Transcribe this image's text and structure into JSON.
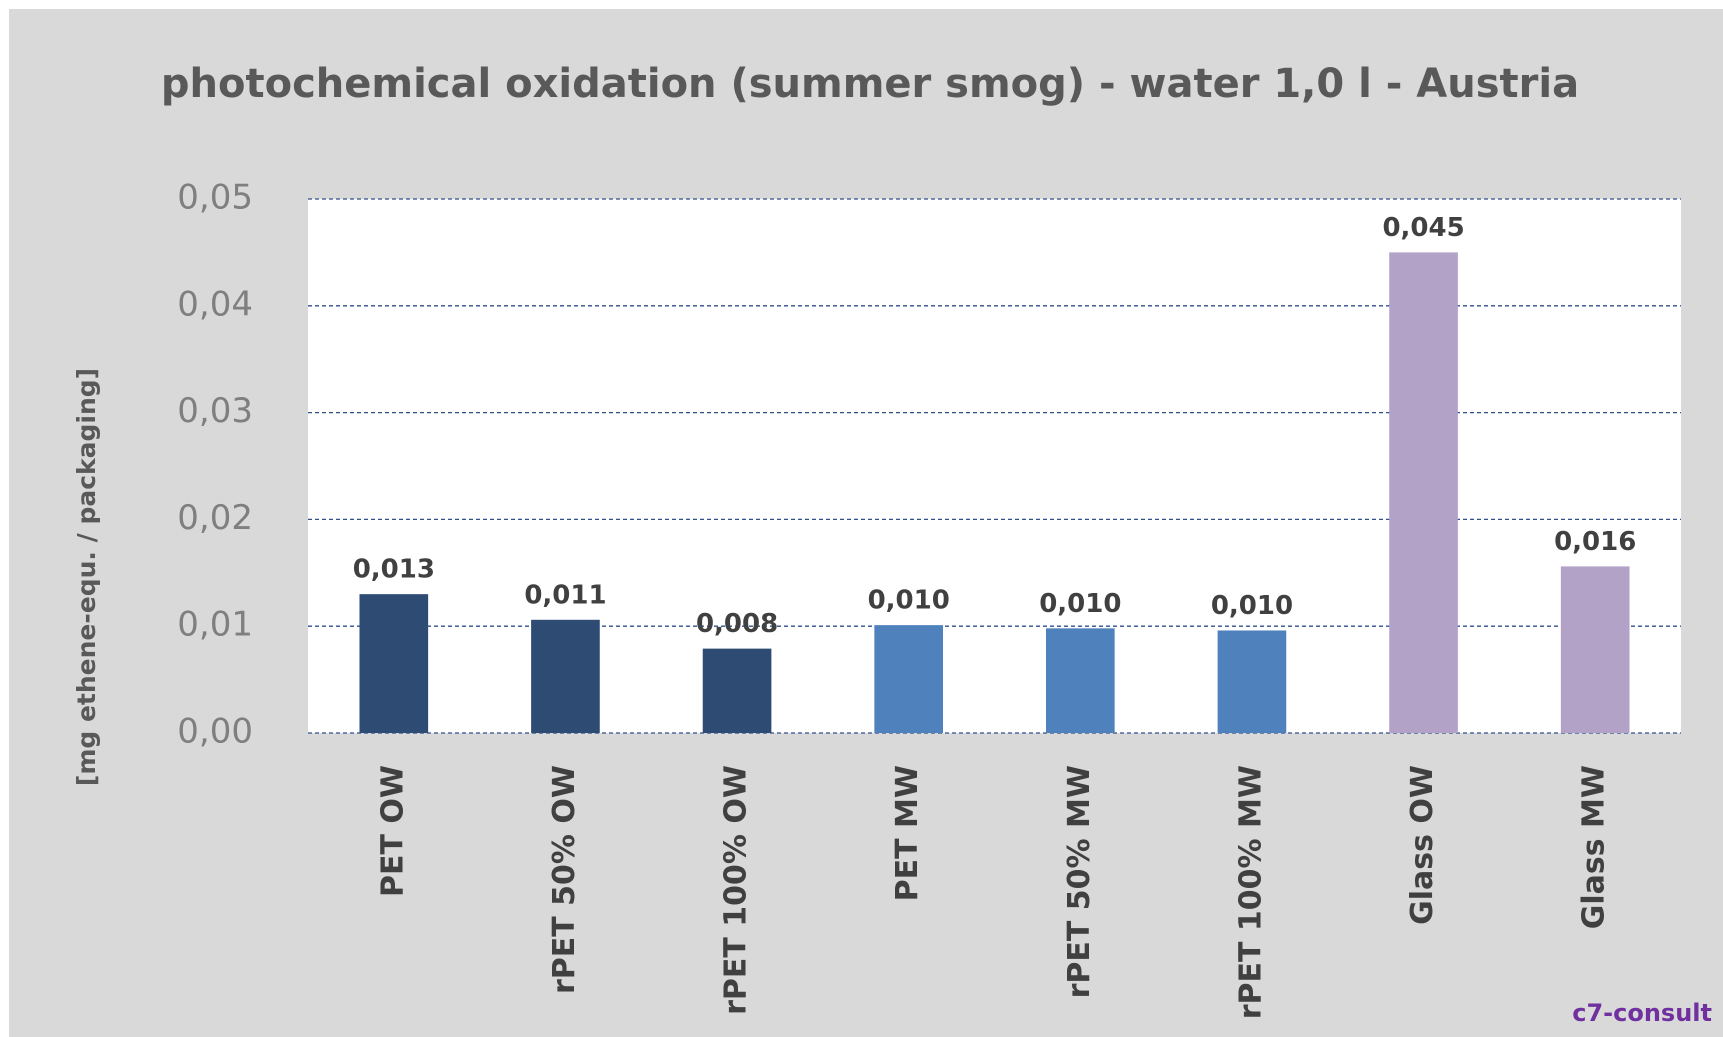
{
  "chart_data": {
    "type": "bar",
    "title": "photochemical oxidation (summer smog) - water 1,0 l - Austria",
    "y_label": "[mg ethene-equ. / packaging]",
    "categories": [
      "PET OW",
      "rPET 50% OW",
      "rPET 100% OW",
      "PET MW",
      "rPET 50% MW",
      "rPET 100% MW",
      "Glass OW",
      "Glass MW"
    ],
    "values": [
      0.013,
      0.0106,
      0.0079,
      0.0101,
      0.0098,
      0.0096,
      0.045,
      0.0156
    ],
    "value_labels": [
      "0,013",
      "0,011",
      "0,008",
      "0,010",
      "0,010",
      "0,010",
      "0,045",
      "0,016"
    ],
    "colors": [
      "#2e4c73",
      "#2e4c73",
      "#2e4c73",
      "#4f81bd",
      "#4f81bd",
      "#4f81bd",
      "#b3a2c7",
      "#b3a2c7"
    ],
    "ylim": [
      0,
      0.05
    ],
    "yticks": [
      {
        "value": 0,
        "label": "0,00"
      },
      {
        "value": 0.01,
        "label": "0,01"
      },
      {
        "value": 0.02,
        "label": "0,02"
      },
      {
        "value": 0.03,
        "label": "0,03"
      },
      {
        "value": 0.04,
        "label": "0,04"
      },
      {
        "value": 0.05,
        "label": "0,05"
      }
    ],
    "grid": true,
    "logo": "c7-consult"
  }
}
